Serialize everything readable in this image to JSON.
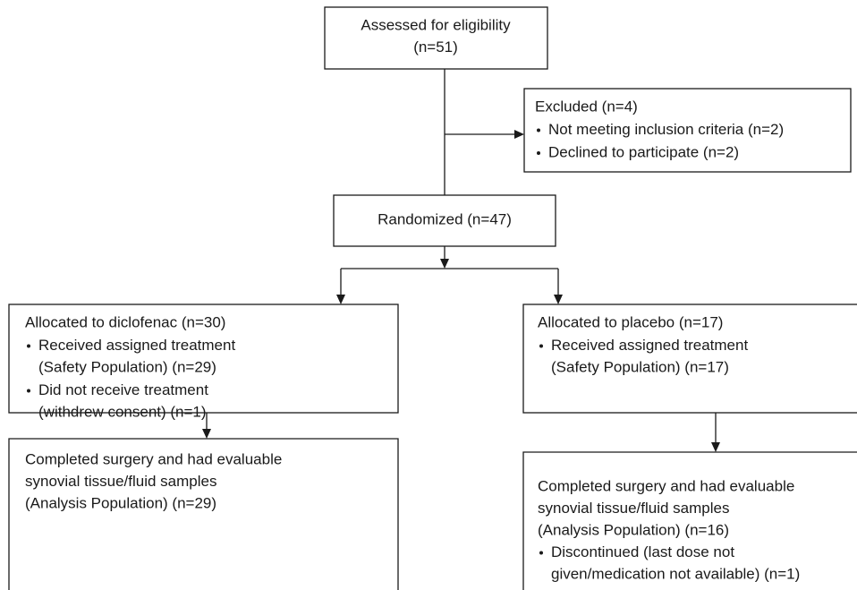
{
  "nodes": [
    {
      "lines": [
        "Assessed for eligibility",
        "(n=51)"
      ]
    },
    {
      "heading": "Excluded (n=4)",
      "items": [
        [
          "Not meeting inclusion criteria (n=2)"
        ],
        [
          "Declined to participate (n=2)"
        ]
      ]
    },
    {
      "lines": [
        "Randomized (n=47)"
      ]
    },
    {
      "heading": "Allocated to diclofenac (n=30)",
      "items": [
        [
          "Received assigned treatment",
          "(Safety Population) (n=29)"
        ],
        [
          "Did not receive treatment",
          "(withdrew consent) (n=1)"
        ]
      ]
    },
    {
      "heading": "Allocated to placebo (n=17)",
      "items": [
        [
          "Received assigned treatment",
          "(Safety Population) (n=17)"
        ]
      ]
    },
    {
      "lines": [
        "Completed surgery and had evaluable",
        "synovial tissue/fluid samples",
        "(Analysis Population) (n=29)"
      ]
    },
    {
      "lines": [
        "Completed surgery and had evaluable",
        "synovial tissue/fluid samples",
        "(Analysis Population) (n=16)"
      ],
      "items": [
        [
          "Discontinued (last dose not",
          "given/medication not available) (n=1)"
        ]
      ]
    }
  ]
}
